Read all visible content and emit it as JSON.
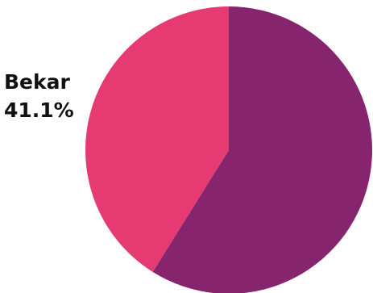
{
  "chart_data": {
    "type": "pie",
    "title": "",
    "slices": [
      {
        "label": "",
        "percent": 58.9,
        "color": "#86256E"
      },
      {
        "label": "Bekar",
        "percent": 41.1,
        "percent_text": "41.1%",
        "color": "#E63A72"
      }
    ],
    "start_angle_deg": 0,
    "direction": "clockwise"
  }
}
